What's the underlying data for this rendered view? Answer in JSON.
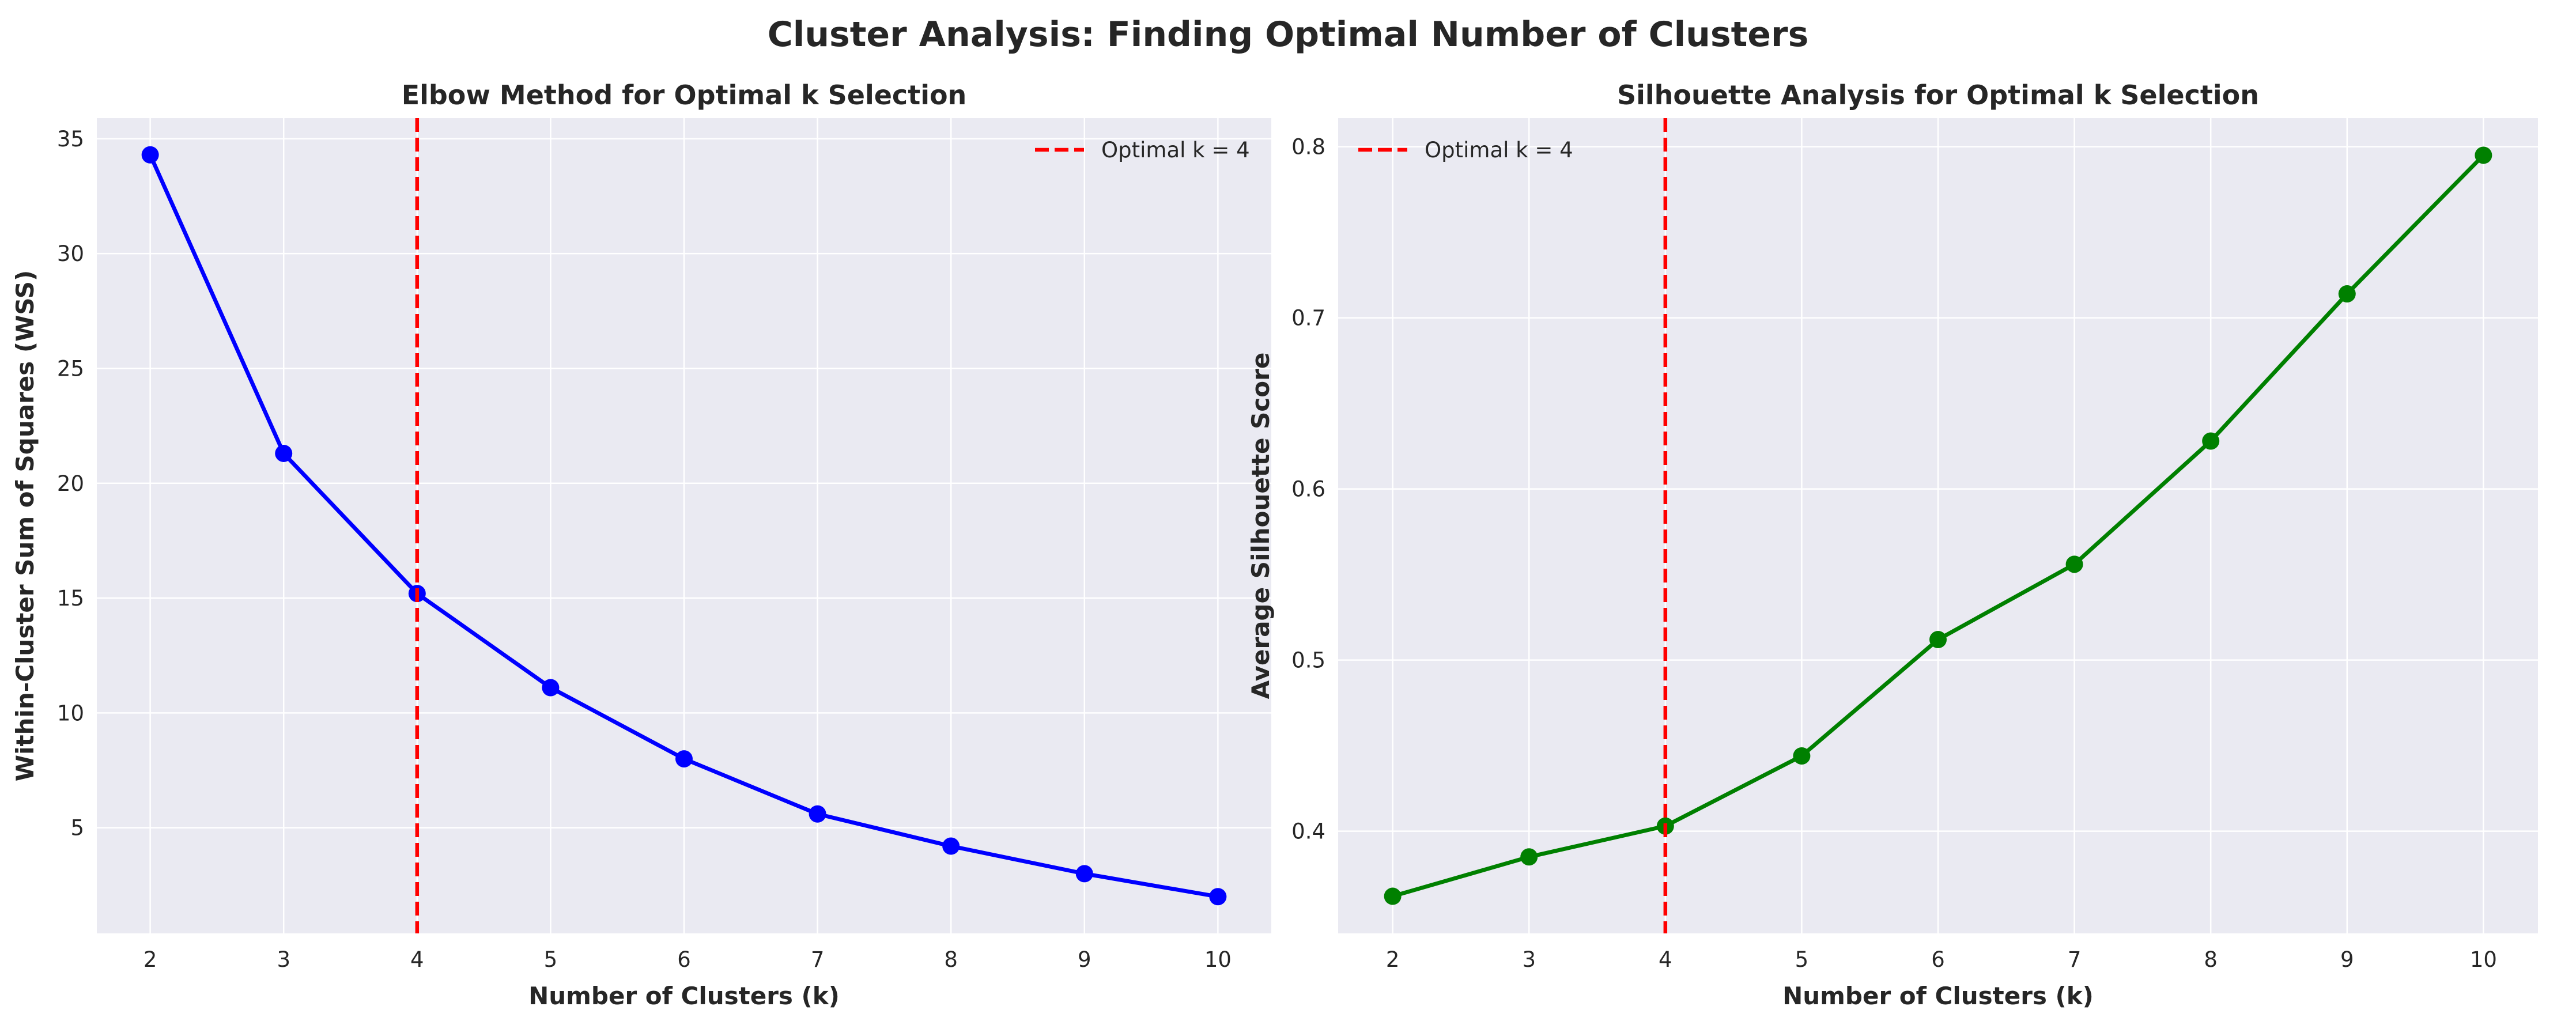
{
  "figure": {
    "suptitle": "Cluster Analysis: Finding Optimal Number of Clusters",
    "background": "#ffffff",
    "axes_facecolor": "#eaeaf2",
    "grid_color": "#ffffff"
  },
  "chart_data": [
    {
      "type": "line",
      "title": "Elbow Method for Optimal k Selection",
      "xlabel": "Number of Clusters (k)",
      "ylabel": "Within-Cluster Sum of Squares (WSS)",
      "x": [
        2,
        3,
        4,
        5,
        6,
        7,
        8,
        9,
        10
      ],
      "series": [
        {
          "values": [
            34.3,
            21.3,
            15.2,
            11.1,
            8.0,
            5.6,
            4.2,
            3.0,
            2.0
          ],
          "color": "#0000ff",
          "marker": "circle"
        }
      ],
      "reference_line": {
        "x": 4,
        "label": "Optimal k = 4",
        "color": "#ff0000",
        "style": "dashed"
      },
      "xlim": [
        1.6,
        10.4
      ],
      "ylim": [
        0.4,
        35.9
      ],
      "xticks": [
        2,
        3,
        4,
        5,
        6,
        7,
        8,
        9,
        10
      ],
      "yticks": [
        5,
        10,
        15,
        20,
        25,
        30,
        35
      ],
      "grid": true,
      "legend": "top-right"
    },
    {
      "type": "line",
      "title": "Silhouette Analysis for Optimal k Selection",
      "xlabel": "Number of Clusters (k)",
      "ylabel": "Average Silhouette Score",
      "x": [
        2,
        3,
        4,
        5,
        6,
        7,
        8,
        9,
        10
      ],
      "series": [
        {
          "values": [
            0.362,
            0.385,
            0.403,
            0.444,
            0.512,
            0.556,
            0.628,
            0.714,
            0.795
          ],
          "color": "#008000",
          "marker": "circle"
        }
      ],
      "reference_line": {
        "x": 4,
        "label": "Optimal k = 4",
        "color": "#ff0000",
        "style": "dashed"
      },
      "xlim": [
        1.6,
        10.4
      ],
      "ylim": [
        0.3403,
        0.8167
      ],
      "xticks": [
        2,
        3,
        4,
        5,
        6,
        7,
        8,
        9,
        10
      ],
      "yticks": [
        0.4,
        0.5,
        0.6,
        0.7,
        0.8
      ],
      "grid": true,
      "legend": "top-left"
    }
  ]
}
